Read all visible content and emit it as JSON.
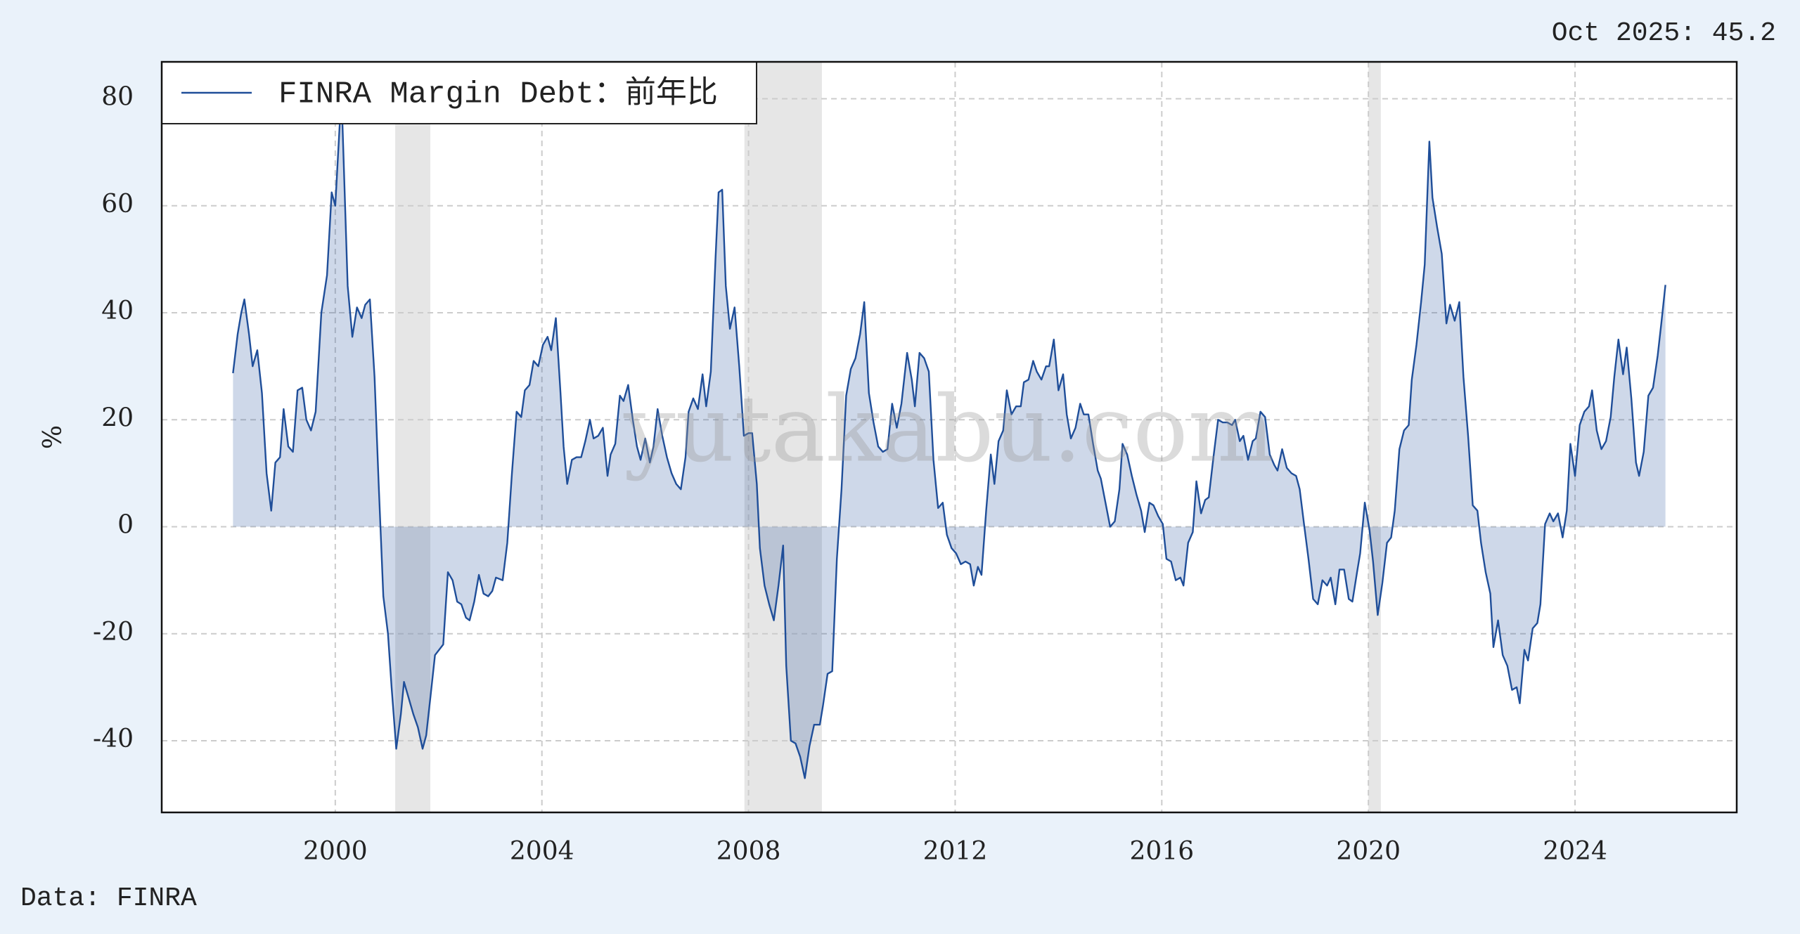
{
  "chart_data": {
    "type": "line",
    "annotation": "Oct 2025: 45.2",
    "source": "Data: FINRA",
    "ylabel": "%",
    "watermark": "yutakabu.com",
    "legend": "upper left",
    "grid": true,
    "fill_to_zero": true,
    "shade_color": "#e6e6e6",
    "shaded_spans": [
      [
        2001.16,
        2001.84
      ],
      [
        2007.92,
        2009.42
      ],
      [
        2020.0,
        2020.24
      ]
    ],
    "xlim": [
      1996.64,
      2027.13
    ],
    "ylim": [
      -53.4,
      86.9
    ],
    "xticks": [
      2000,
      2004,
      2008,
      2012,
      2016,
      2020,
      2024
    ],
    "yticks": [
      -40,
      -20,
      0,
      20,
      40,
      60,
      80
    ],
    "x": [
      1998.02,
      1998.11,
      1998.18,
      1998.24,
      1998.33,
      1998.4,
      1998.49,
      1998.58,
      1998.67,
      1998.76,
      1998.84,
      1998.93,
      1999.0,
      1999.09,
      1999.18,
      1999.27,
      1999.36,
      1999.44,
      1999.53,
      1999.62,
      1999.73,
      1999.84,
      1999.93,
      2000.0,
      2000.09,
      2000.13,
      2000.24,
      2000.33,
      2000.42,
      2000.51,
      2000.58,
      2000.67,
      2000.76,
      2000.84,
      2000.93,
      2001.02,
      2001.09,
      2001.18,
      2001.27,
      2001.33,
      2001.42,
      2001.51,
      2001.6,
      2001.69,
      2001.76,
      2001.84,
      2001.93,
      2002.09,
      2002.18,
      2002.27,
      2002.36,
      2002.44,
      2002.53,
      2002.6,
      2002.69,
      2002.78,
      2002.87,
      2002.96,
      2003.04,
      2003.11,
      2003.24,
      2003.33,
      2003.42,
      2003.51,
      2003.6,
      2003.67,
      2003.76,
      2003.84,
      2003.93,
      2004.02,
      2004.11,
      2004.18,
      2004.27,
      2004.36,
      2004.42,
      2004.49,
      2004.58,
      2004.67,
      2004.76,
      2004.84,
      2004.93,
      2005.0,
      2005.09,
      2005.18,
      2005.27,
      2005.33,
      2005.42,
      2005.51,
      2005.58,
      2005.67,
      2005.76,
      2005.84,
      2005.91,
      2006.0,
      2006.09,
      2006.16,
      2006.24,
      2006.33,
      2006.42,
      2006.51,
      2006.6,
      2006.69,
      2006.78,
      2006.84,
      2006.93,
      2007.02,
      2007.11,
      2007.18,
      2007.27,
      2007.36,
      2007.42,
      2007.49,
      2007.56,
      2007.64,
      2007.73,
      2007.82,
      2007.91,
      2008.0,
      2008.07,
      2008.16,
      2008.22,
      2008.31,
      2008.4,
      2008.49,
      2008.58,
      2008.67,
      2008.73,
      2008.82,
      2008.91,
      2009.0,
      2009.09,
      2009.18,
      2009.27,
      2009.38,
      2009.44,
      2009.53,
      2009.62,
      2009.71,
      2009.8,
      2009.89,
      2009.98,
      2010.07,
      2010.16,
      2010.24,
      2010.33,
      2010.42,
      2010.51,
      2010.6,
      2010.69,
      2010.78,
      2010.87,
      2010.96,
      2011.07,
      2011.16,
      2011.22,
      2011.31,
      2011.4,
      2011.49,
      2011.58,
      2011.67,
      2011.76,
      2011.84,
      2011.93,
      2012.02,
      2012.11,
      2012.2,
      2012.29,
      2012.36,
      2012.44,
      2012.51,
      2012.6,
      2012.69,
      2012.76,
      2012.84,
      2012.93,
      2013.0,
      2013.09,
      2013.18,
      2013.27,
      2013.33,
      2013.42,
      2013.51,
      2013.58,
      2013.67,
      2013.76,
      2013.82,
      2013.91,
      2014.0,
      2014.09,
      2014.16,
      2014.24,
      2014.33,
      2014.42,
      2014.49,
      2014.58,
      2014.67,
      2014.76,
      2014.82,
      2014.91,
      2015.0,
      2015.09,
      2015.18,
      2015.24,
      2015.33,
      2015.42,
      2015.51,
      2015.6,
      2015.67,
      2015.76,
      2015.84,
      2015.93,
      2016.02,
      2016.09,
      2016.18,
      2016.27,
      2016.36,
      2016.42,
      2016.51,
      2016.6,
      2016.67,
      2016.76,
      2016.84,
      2016.91,
      2017.0,
      2017.09,
      2017.18,
      2017.27,
      2017.36,
      2017.42,
      2017.51,
      2017.58,
      2017.67,
      2017.76,
      2017.82,
      2017.91,
      2018.0,
      2018.09,
      2018.18,
      2018.24,
      2018.33,
      2018.42,
      2018.51,
      2018.6,
      2018.67,
      2018.76,
      2018.84,
      2018.93,
      2019.02,
      2019.11,
      2019.2,
      2019.27,
      2019.36,
      2019.44,
      2019.53,
      2019.62,
      2019.69,
      2019.78,
      2019.84,
      2019.93,
      2020.02,
      2020.09,
      2020.18,
      2020.27,
      2020.36,
      2020.44,
      2020.51,
      2020.6,
      2020.69,
      2020.78,
      2020.84,
      2020.93,
      2021.02,
      2021.09,
      2021.18,
      2021.24,
      2021.33,
      2021.42,
      2021.51,
      2021.58,
      2021.67,
      2021.76,
      2021.84,
      2021.93,
      2022.02,
      2022.11,
      2022.18,
      2022.27,
      2022.36,
      2022.42,
      2022.51,
      2022.6,
      2022.69,
      2022.78,
      2022.87,
      2022.93,
      2023.02,
      2023.09,
      2023.18,
      2023.27,
      2023.33,
      2023.42,
      2023.51,
      2023.58,
      2023.67,
      2023.76,
      2023.84,
      2023.91,
      2024.0,
      2024.09,
      2024.18,
      2024.27,
      2024.33,
      2024.42,
      2024.51,
      2024.6,
      2024.69,
      2024.76,
      2024.84,
      2024.93,
      2025.0,
      2025.09,
      2025.18,
      2025.24,
      2025.33,
      2025.42,
      2025.51,
      2025.6,
      2025.67,
      2025.75
    ],
    "series": [
      {
        "name": "FINRA Margin Debt：前年比",
        "color": "#1f4e99",
        "values": [
          28.7,
          36,
          40,
          42.5,
          36,
          30,
          33,
          25,
          10,
          3,
          12,
          13,
          22,
          15,
          14,
          25.5,
          26,
          20,
          18,
          21.5,
          40,
          47,
          62.5,
          60,
          76,
          78,
          45,
          35.5,
          41,
          39,
          41.5,
          42.5,
          28,
          8,
          -13,
          -20,
          -30,
          -41.5,
          -35,
          -29,
          -32,
          -35,
          -37.5,
          -41.5,
          -39,
          -32,
          -24,
          -22,
          -8.5,
          -10,
          -14,
          -14.5,
          -17,
          -17.5,
          -14,
          -9,
          -12.5,
          -13,
          -12,
          -9.5,
          -10,
          -3,
          10,
          21.5,
          20.5,
          25.5,
          26.5,
          31,
          30,
          34,
          35.5,
          33,
          39,
          25,
          15,
          8,
          12.5,
          13,
          13,
          16,
          20,
          16.5,
          17,
          18.5,
          9.5,
          13.5,
          15.5,
          24.5,
          23.5,
          26.5,
          20,
          15,
          12.5,
          16.5,
          12,
          15,
          22,
          17,
          13,
          10,
          8,
          7,
          13,
          21.5,
          24,
          22,
          28.5,
          22.5,
          29,
          50,
          62.5,
          63,
          45,
          37,
          41,
          30,
          17,
          17.5,
          17.5,
          8,
          -4,
          -11,
          -14.5,
          -17.5,
          -11,
          -3.5,
          -26,
          -40,
          -40.5,
          -43,
          -47,
          -41,
          -37,
          -37,
          -33.5,
          -27.5,
          -27,
          -6,
          7,
          24.5,
          29.5,
          31.5,
          36,
          42,
          25,
          19.5,
          15,
          14,
          14.5,
          23,
          18.5,
          23,
          32.5,
          27.5,
          22.5,
          32.5,
          31.5,
          29,
          12.5,
          3.5,
          4.5,
          -1.5,
          -4,
          -5,
          -7,
          -6.5,
          -7,
          -11,
          -7.5,
          -9,
          3,
          13.5,
          8,
          16,
          18,
          25.5,
          21,
          22.5,
          22.5,
          27,
          27.5,
          31,
          29,
          27.5,
          30,
          30,
          35,
          25.5,
          28.5,
          21,
          16.5,
          18.5,
          23,
          21,
          21,
          15.5,
          10.5,
          9,
          4.5,
          0,
          1,
          7,
          15.5,
          13.5,
          9.5,
          6,
          3,
          -1,
          4.5,
          4,
          2,
          0.5,
          -6,
          -6.5,
          -10,
          -9.5,
          -11,
          -3,
          -1,
          8.5,
          2.5,
          5,
          5.5,
          13,
          20,
          19.5,
          19.5,
          19,
          20,
          16,
          17,
          12.5,
          16,
          16.5,
          21.5,
          20.5,
          13.5,
          11.5,
          10.5,
          14.5,
          11,
          10,
          9.5,
          7,
          0,
          -6,
          -13.5,
          -14.5,
          -10,
          -11,
          -9.5,
          -14.5,
          -8,
          -8,
          -13.5,
          -14,
          -8.5,
          -5,
          4.5,
          -0.5,
          -6.5,
          -16.5,
          -10.5,
          -3,
          -2,
          3,
          14.5,
          18,
          19,
          27.5,
          34,
          42,
          49,
          72,
          61.5,
          56,
          51,
          38,
          41.5,
          38.5,
          42,
          28,
          17,
          4,
          3,
          -3,
          -8.5,
          -12.5,
          -22.5,
          -17.5,
          -24,
          -26,
          -30.5,
          -30,
          -33,
          -23,
          -25,
          -19,
          -18,
          -14.5,
          0.5,
          2.5,
          1,
          2.5,
          -2,
          3,
          15.5,
          9.5,
          19,
          21.5,
          22.5,
          25.5,
          18,
          14.5,
          16,
          20.5,
          28,
          35,
          28.5,
          33.5,
          24,
          12,
          9.5,
          14,
          24.5,
          26,
          32,
          38,
          45.2
        ]
      }
    ]
  }
}
